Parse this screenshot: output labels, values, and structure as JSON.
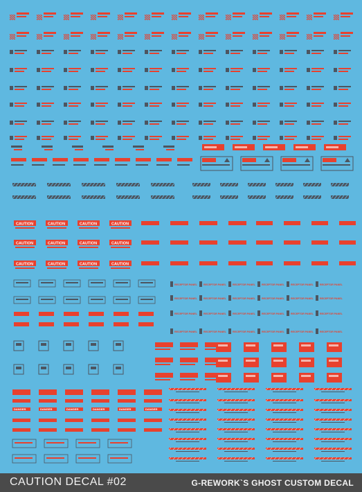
{
  "footer": {
    "title": "CAUTION DECAL #02",
    "brand": "G-REWORK`S GHOST CUSTOM DECAL"
  },
  "decals": {
    "caution": "CAUTION",
    "receptor_panel": "RECEPTOR PANEL",
    "danger": "DANGER",
    "access_panel": "ACCESS PANEL",
    "tiny_text": "WARNING"
  },
  "colors": {
    "background": "#5fb8e0",
    "red": "#e8412e",
    "gray": "#4d5560",
    "footer": "#4a4a4a"
  }
}
